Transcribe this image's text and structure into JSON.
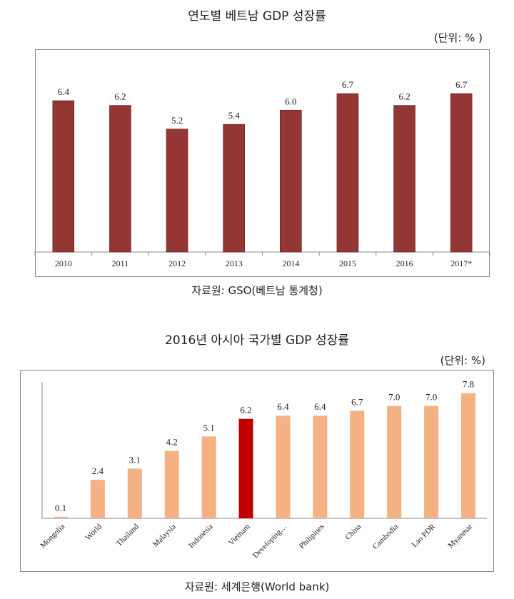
{
  "charts": [
    {
      "title": "연도별 베트남 GDP 성장률",
      "unit": "(단위: % )",
      "source": "자료원: GSO(베트남 통계청)"
    },
    {
      "title": "2016년 아시아 국가별 GDP 성장률",
      "unit": "(단위: %)",
      "source": "자료원: 세계은행(World bank)"
    }
  ],
  "chart_data": [
    {
      "type": "bar",
      "title": "연도별 베트남 GDP 성장률",
      "categories": [
        "2010",
        "2011",
        "2012",
        "2013",
        "2014",
        "2015",
        "2016",
        "2017*"
      ],
      "values": [
        6.4,
        6.2,
        5.2,
        5.4,
        6.0,
        6.7,
        6.2,
        6.7
      ],
      "value_labels": [
        "6.4",
        "6.2",
        "5.2",
        "5.4",
        "6.0",
        "6.7",
        "6.2",
        "6.7"
      ],
      "ylim": [
        0,
        8
      ],
      "grid": false,
      "colors": {
        "bar": "#943634"
      }
    },
    {
      "type": "bar",
      "title": "2016년 아시아 국가별 GDP 성장률",
      "categories": [
        "Mongolia",
        "World",
        "Thailand",
        "Malaysia",
        "Indonesia",
        "Vietnam",
        "Developing…",
        "Philipines",
        "China",
        "Cambodia",
        "Lao PDR",
        "Myanmar"
      ],
      "values": [
        0.1,
        2.4,
        3.1,
        4.2,
        5.1,
        6.2,
        6.4,
        6.4,
        6.7,
        7.0,
        7.0,
        7.8
      ],
      "value_labels": [
        "0.1",
        "2.4",
        "3.1",
        "4.2",
        "5.1",
        "6.2",
        "6.4",
        "6.4",
        "6.7",
        "7.0",
        "7.0",
        "7.8"
      ],
      "highlight": "Vietnam",
      "ylim": [
        0,
        8.5
      ],
      "grid": false,
      "colors": {
        "bar": "#F4B183",
        "highlight": "#C00000"
      }
    }
  ]
}
